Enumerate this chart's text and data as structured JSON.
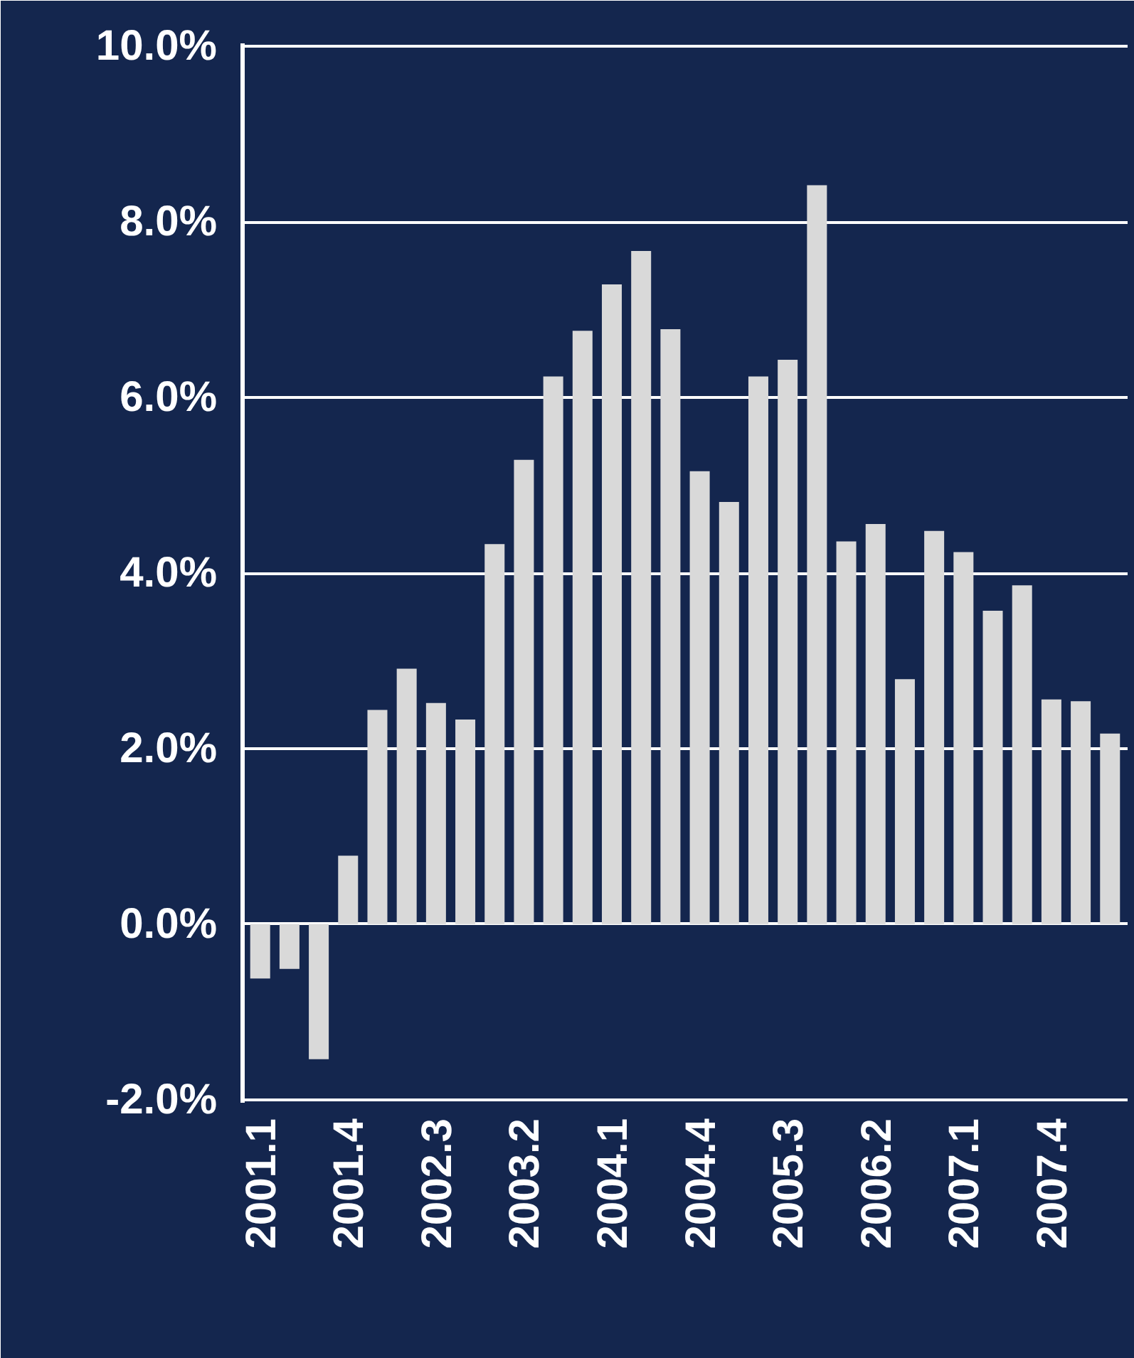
{
  "chart_data": {
    "type": "bar",
    "categories": [
      "2001.1",
      null,
      null,
      "2001.4",
      null,
      null,
      "2002.3",
      null,
      null,
      "2003.2",
      null,
      null,
      "2004.1",
      null,
      null,
      "2004.4",
      null,
      null,
      "2005.3",
      null,
      null,
      "2006.2",
      null,
      null,
      "2007.1",
      null,
      null,
      "2007.4",
      null,
      null
    ],
    "values": [
      -0.62,
      -0.51,
      -1.54,
      0.78,
      2.44,
      2.91,
      2.52,
      2.33,
      4.33,
      5.29,
      6.24,
      6.76,
      7.29,
      7.67,
      6.78,
      5.16,
      4.81,
      6.24,
      6.43,
      8.42,
      4.36,
      4.56,
      2.79,
      4.48,
      4.24,
      3.57,
      3.86,
      2.56,
      2.54,
      2.17
    ],
    "color": "#d9d9d9",
    "ylim": [
      -2,
      10
    ],
    "yticks": [
      {
        "value": -2,
        "label": "-2.0%"
      },
      {
        "value": 0,
        "label": "0.0%"
      },
      {
        "value": 2,
        "label": "2.0%"
      },
      {
        "value": 4,
        "label": "4.0%"
      },
      {
        "value": 6,
        "label": "6.0%"
      },
      {
        "value": 8,
        "label": "8.0%"
      },
      {
        "value": 10,
        "label": "10.0%"
      }
    ],
    "grid": "y"
  }
}
